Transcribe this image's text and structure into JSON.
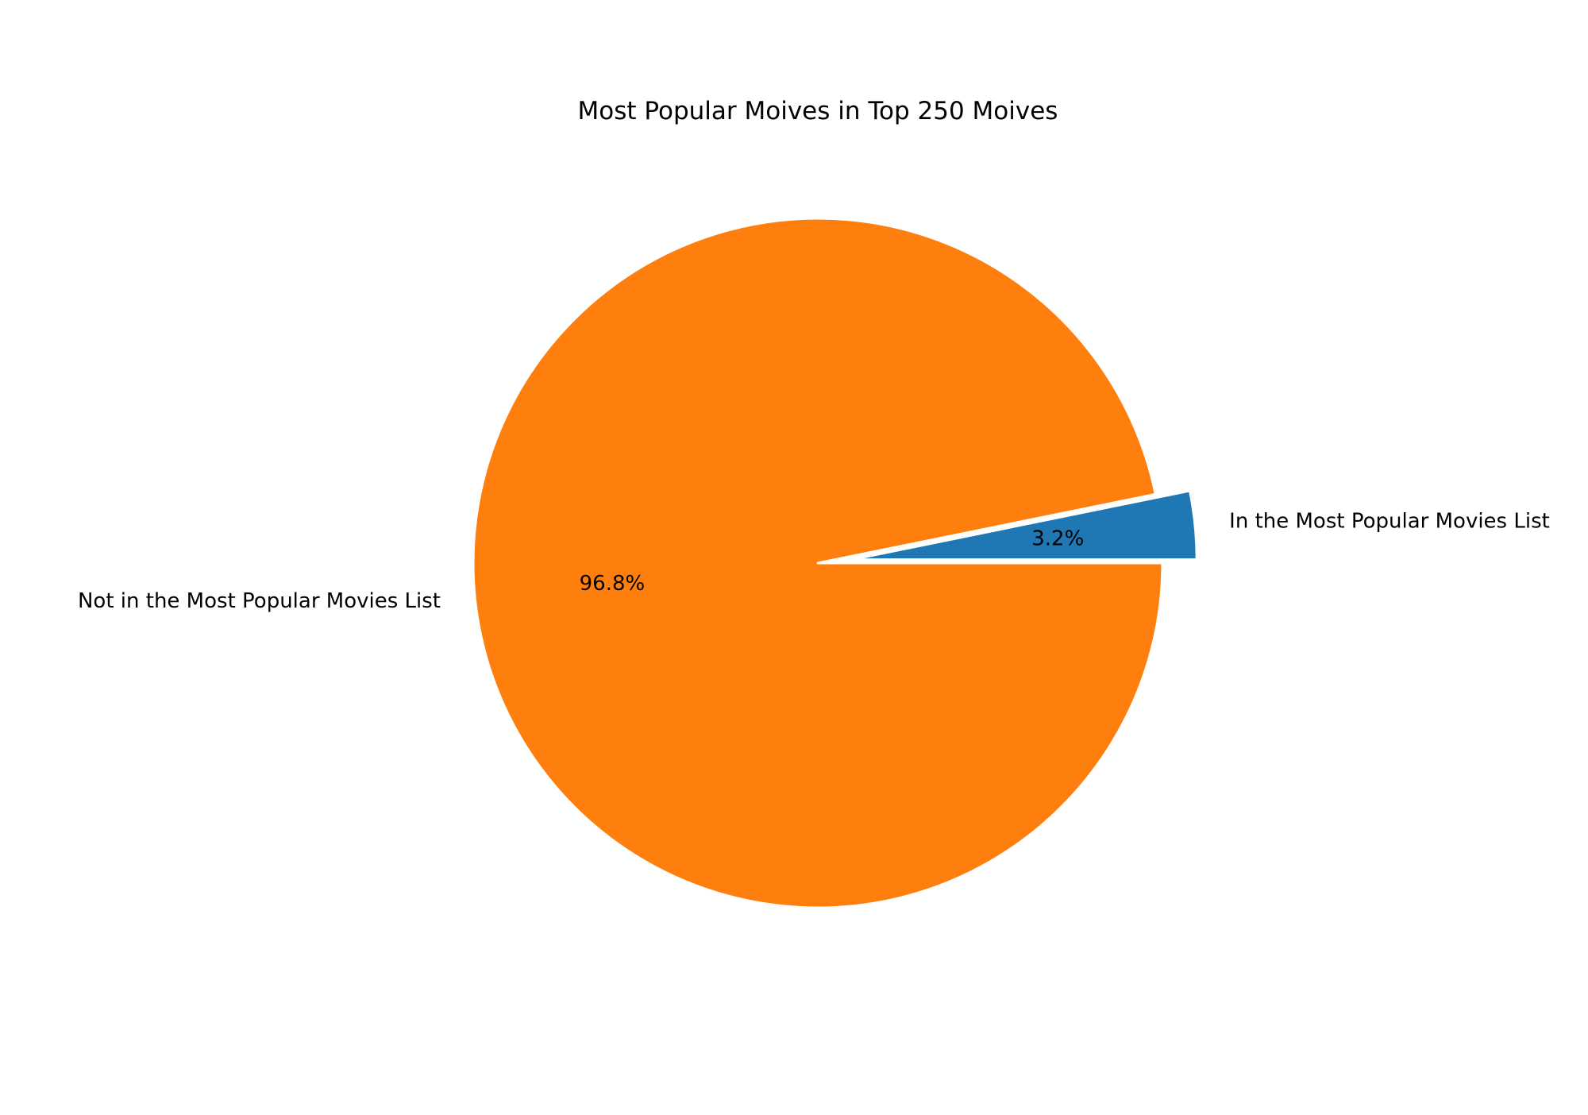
{
  "chart_data": {
    "type": "pie",
    "title": "Most Popular Moives in Top 250 Moives",
    "slices": [
      {
        "label": "In the Most Popular Movies List",
        "value": 3.2,
        "pct_label": "3.2%",
        "color": "#1f77b4",
        "exploded": true
      },
      {
        "label": "Not in the Most Popular Movies List",
        "value": 96.8,
        "pct_label": "96.8%",
        "color": "#ff7f0e",
        "exploded": false
      }
    ],
    "start_angle": 0,
    "direction": "counterclockwise",
    "edge_color": "#ffffff"
  }
}
